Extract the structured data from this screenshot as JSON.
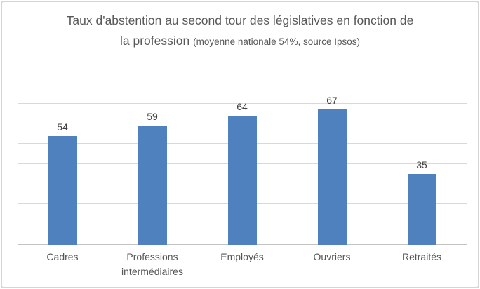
{
  "title": {
    "main": "Taux d'abstention au second tour des législatives en fonction de la profession ",
    "sub": "(moyenne nationale 54%, source Ipsos)"
  },
  "chart_data": {
    "type": "bar",
    "title": "Taux d'abstention au second tour des législatives en fonction de la profession (moyenne nationale 54%, source Ipsos)",
    "categories": [
      "Cadres",
      "Professions intermédiaires",
      "Employés",
      "Ouvriers",
      "Retraités"
    ],
    "values": [
      54,
      59,
      64,
      67,
      35
    ],
    "data_labels": [
      "54",
      "59",
      "64",
      "67",
      "35"
    ],
    "xlabel": "",
    "ylabel": "",
    "ylim": [
      0,
      80
    ],
    "grid_step": 10,
    "grid": true,
    "legend": false,
    "y_tick_labels_visible": false,
    "bar_color": "#4e81bd",
    "gridline_color": "#d9d9d9",
    "axis_color": "#c3c3c3",
    "value_label_color": "#404040",
    "category_label_color": "#555555",
    "title_color": "#595959",
    "card_border_color": "#d5d5d5"
  }
}
